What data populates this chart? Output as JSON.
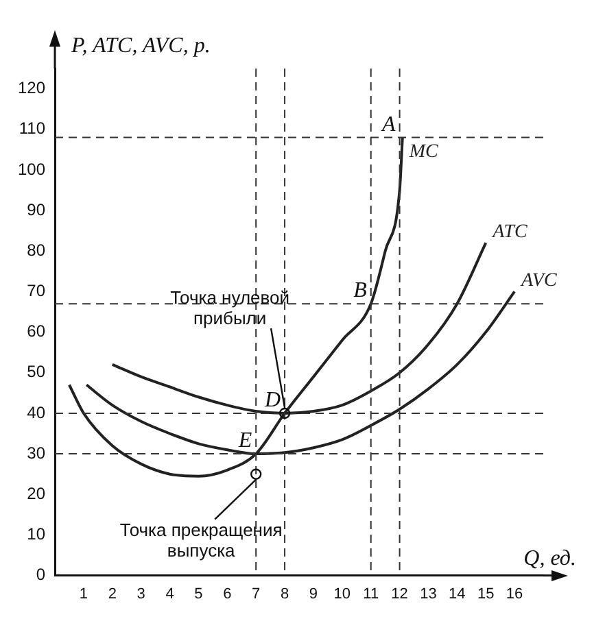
{
  "chart_data": {
    "type": "line",
    "xlabel": "Q, ед.",
    "ylabel": "P, ATC, AVC, р.",
    "xlim": [
      0,
      17
    ],
    "xticks": [
      1,
      2,
      3,
      4,
      5,
      6,
      7,
      8,
      9,
      10,
      11,
      12,
      13,
      14,
      15,
      16
    ],
    "ylim": [
      0,
      125
    ],
    "yticks": [
      0,
      10,
      20,
      30,
      40,
      50,
      60,
      70,
      80,
      90,
      100,
      110,
      120
    ],
    "grid": false,
    "legend": false,
    "marker": "none",
    "line_style": "solid",
    "series": [
      {
        "name": "MC",
        "color": "#222222",
        "x": [
          0.5,
          1,
          2,
          3,
          4,
          5,
          6,
          7,
          8,
          9,
          10,
          11,
          11.5,
          12,
          12.1
        ],
        "values": [
          47,
          40,
          32,
          27.5,
          25,
          24.5,
          26,
          30,
          40,
          49,
          58,
          67,
          80,
          95,
          108
        ]
      },
      {
        "name": "ATC",
        "color": "#222222",
        "x": [
          2,
          3,
          4,
          5,
          6,
          7,
          8,
          9,
          10,
          11,
          12,
          13,
          14,
          15
        ],
        "values": [
          52,
          49,
          46.5,
          44,
          42,
          40.5,
          40,
          40.5,
          42,
          45.5,
          50,
          57,
          67,
          82
        ]
      },
      {
        "name": "AVC",
        "color": "#222222",
        "x": [
          1.1,
          2,
          3,
          4,
          5,
          6,
          7,
          8,
          9,
          10,
          11,
          12,
          13,
          14,
          15,
          16
        ],
        "values": [
          47,
          42,
          38,
          35,
          32.5,
          31,
          30,
          30.3,
          31.5,
          33.5,
          37,
          41,
          46,
          52,
          60,
          70
        ]
      }
    ],
    "ref_lines": [
      {
        "axis": "y",
        "value": 108,
        "line_style": "dashed"
      },
      {
        "axis": "y",
        "value": 67,
        "line_style": "dashed"
      },
      {
        "axis": "y",
        "value": 40,
        "line_style": "dashed"
      },
      {
        "axis": "y",
        "value": 30,
        "line_style": "dashed"
      },
      {
        "axis": "x",
        "value": 7,
        "line_style": "dashed"
      },
      {
        "axis": "x",
        "value": 8,
        "line_style": "dashed"
      },
      {
        "axis": "x",
        "value": 11,
        "line_style": "dashed"
      },
      {
        "axis": "x",
        "value": 12,
        "line_style": "dashed"
      }
    ],
    "annotations": [
      {
        "text": "A",
        "x": 12,
        "y": 108
      },
      {
        "text": "B",
        "x": 11,
        "y": 67
      },
      {
        "text": "D",
        "x": 8,
        "y": 40
      },
      {
        "text": "E",
        "x": 7,
        "y": 30
      },
      {
        "text": "Точка нулевой прибыли",
        "x": 8,
        "y": 40
      },
      {
        "text": "Точка прекращения выпуска",
        "x": 7,
        "y": 25
      }
    ]
  }
}
